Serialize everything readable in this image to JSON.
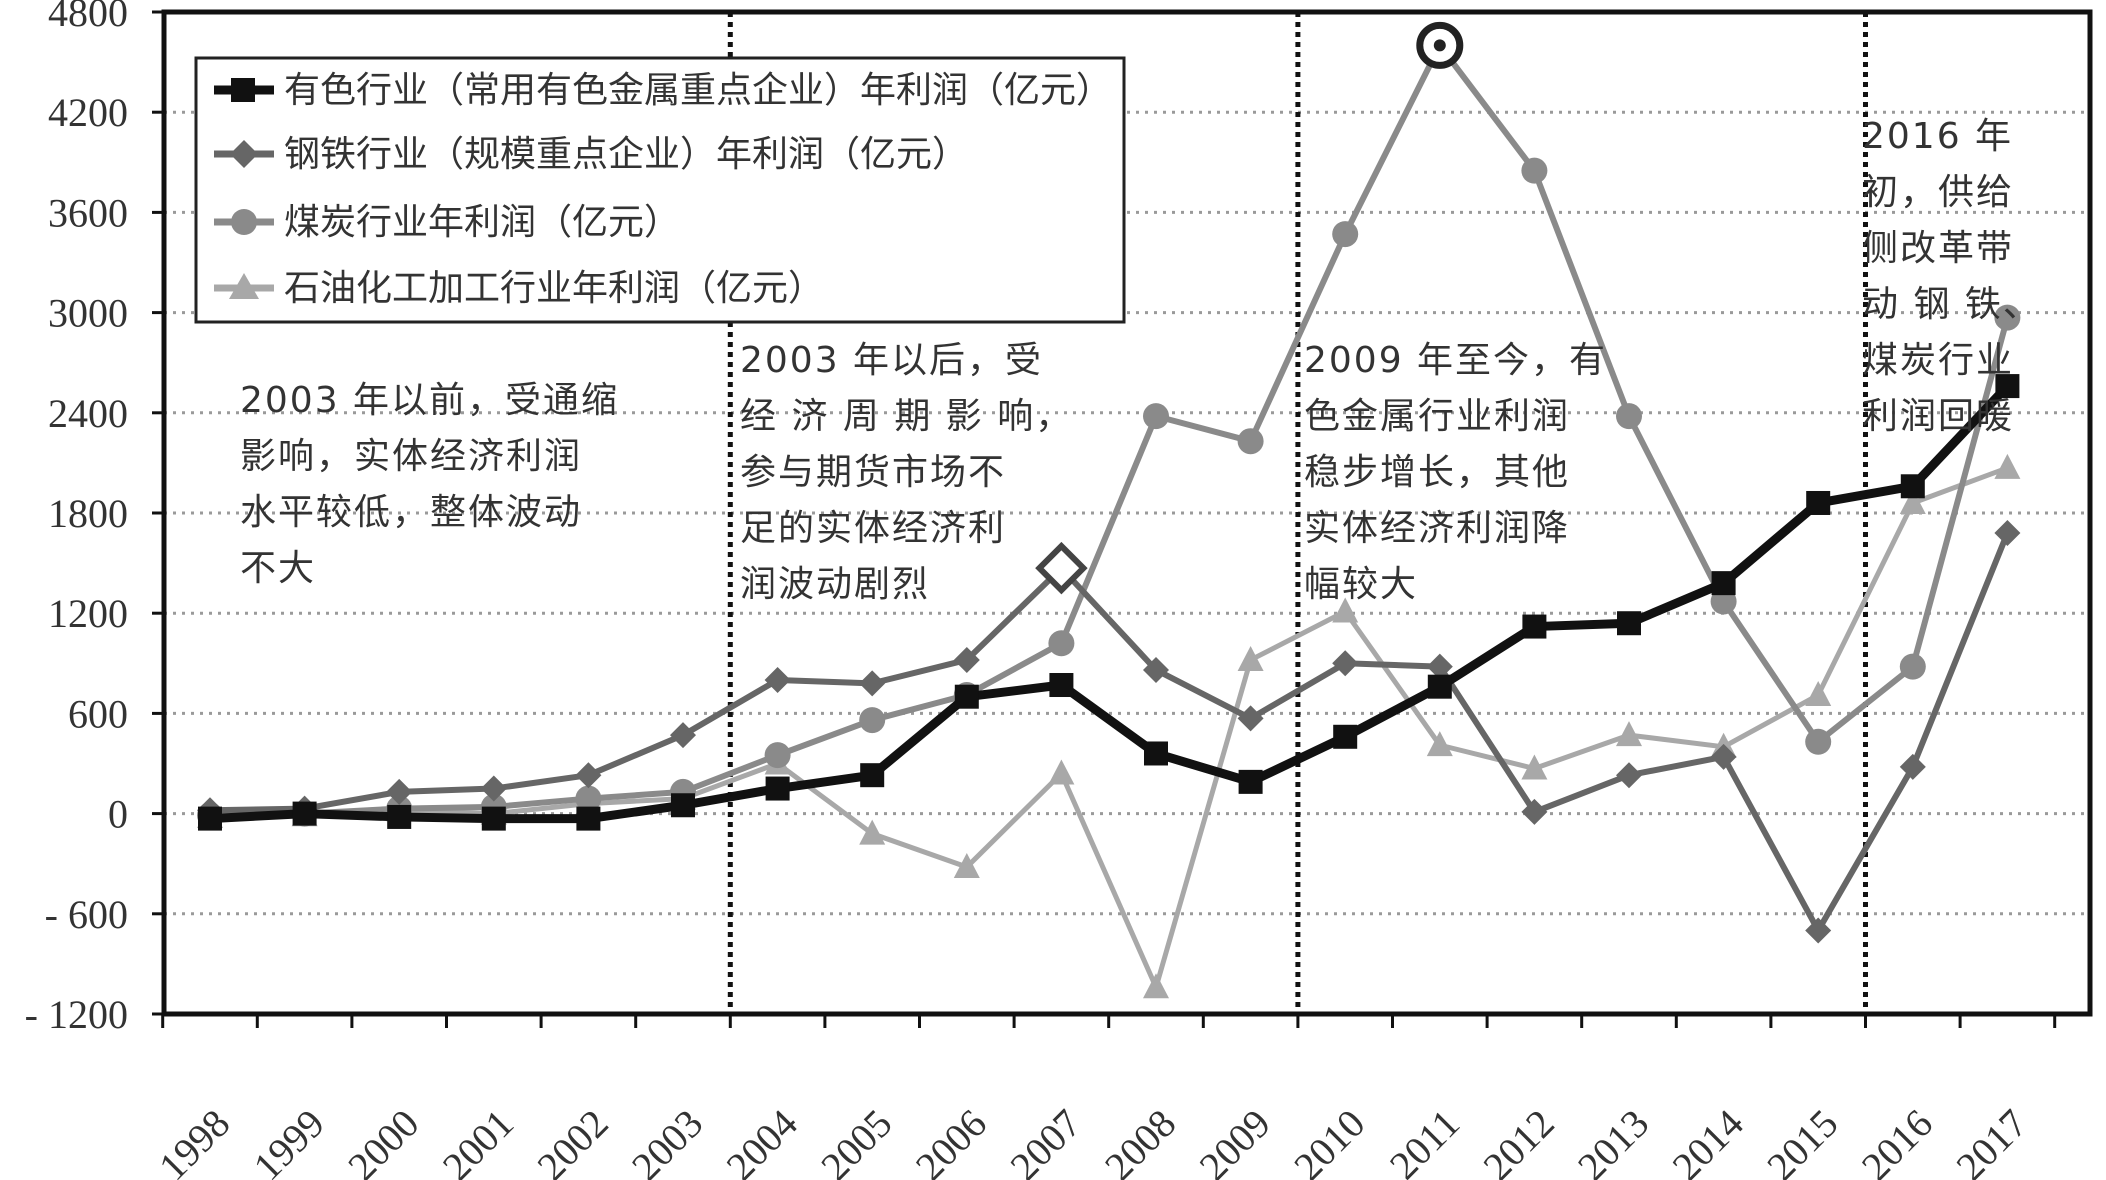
{
  "chart_data": {
    "type": "line",
    "title": "",
    "xlabel": "",
    "ylabel": "",
    "ylim": [
      -1200,
      4800
    ],
    "yticks": [
      "4800",
      "4200",
      "3600",
      "3000",
      "2400",
      "1800",
      "1200",
      "600",
      "0",
      "- 600",
      "- 1200"
    ],
    "categories": [
      "1998",
      "1999",
      "2000",
      "2001",
      "2002",
      "2003",
      "2004",
      "2005",
      "2006",
      "2007",
      "2008",
      "2009",
      "2010",
      "2011",
      "2012",
      "2013",
      "2014",
      "2015",
      "2016",
      "2017"
    ],
    "series": [
      {
        "name": "有色行业（常用有色金属重点企业）年利润（亿元）",
        "marker": "square",
        "color": "#111111",
        "values": [
          -30,
          0,
          -20,
          -30,
          -30,
          50,
          150,
          230,
          700,
          770,
          360,
          190,
          460,
          760,
          1120,
          1140,
          1380,
          1860,
          1960,
          2560
        ]
      },
      {
        "name": "钢铁行业（规模重点企业）年利润（亿元）",
        "marker": "diamond",
        "color": "#666666",
        "values": [
          20,
          30,
          130,
          150,
          230,
          470,
          800,
          780,
          920,
          1470,
          860,
          570,
          900,
          880,
          10,
          230,
          340,
          -700,
          280,
          1680
        ]
      },
      {
        "name": "煤炭行业年利润（亿元）",
        "marker": "circle",
        "color": "#8a8a8a",
        "values": [
          -10,
          0,
          30,
          40,
          90,
          130,
          350,
          560,
          710,
          1020,
          2380,
          2230,
          3470,
          4600,
          3850,
          2380,
          1270,
          430,
          880,
          2970
        ]
      },
      {
        "name": "石油化工加工行业年利润（亿元）",
        "marker": "triangle",
        "color": "#a8a8a8",
        "values": [
          -20,
          -10,
          20,
          0,
          60,
          90,
          300,
          -120,
          -320,
          240,
          -1040,
          920,
          1210,
          410,
          270,
          470,
          400,
          710,
          1860,
          2070
        ]
      }
    ],
    "vertical_lines_between": [
      [
        "2003",
        "2004"
      ],
      [
        "2009",
        "2010"
      ],
      [
        "2015",
        "2016"
      ]
    ],
    "annotations": [
      {
        "lines": [
          "2003 年以前，受通缩",
          "影响，实体经济利润",
          "水平较低，整体波动",
          "不大"
        ]
      },
      {
        "lines": [
          "2003 年以后，受",
          "经 济 周 期 影 响，",
          "参与期货市场不",
          "足的实体经济利",
          "润波动剧烈"
        ]
      },
      {
        "lines": [
          "2009 年至今，有",
          "色金属行业利润",
          "稳步增长，其他",
          "实体经济利润降",
          "幅较大"
        ]
      },
      {
        "lines": [
          "2016 年",
          "初，供给",
          "侧改革带",
          "动 钢 铁、",
          "煤炭行业",
          "利润回暖"
        ]
      }
    ],
    "legend_position": "top-left",
    "grid": "dotted-horizontal"
  }
}
